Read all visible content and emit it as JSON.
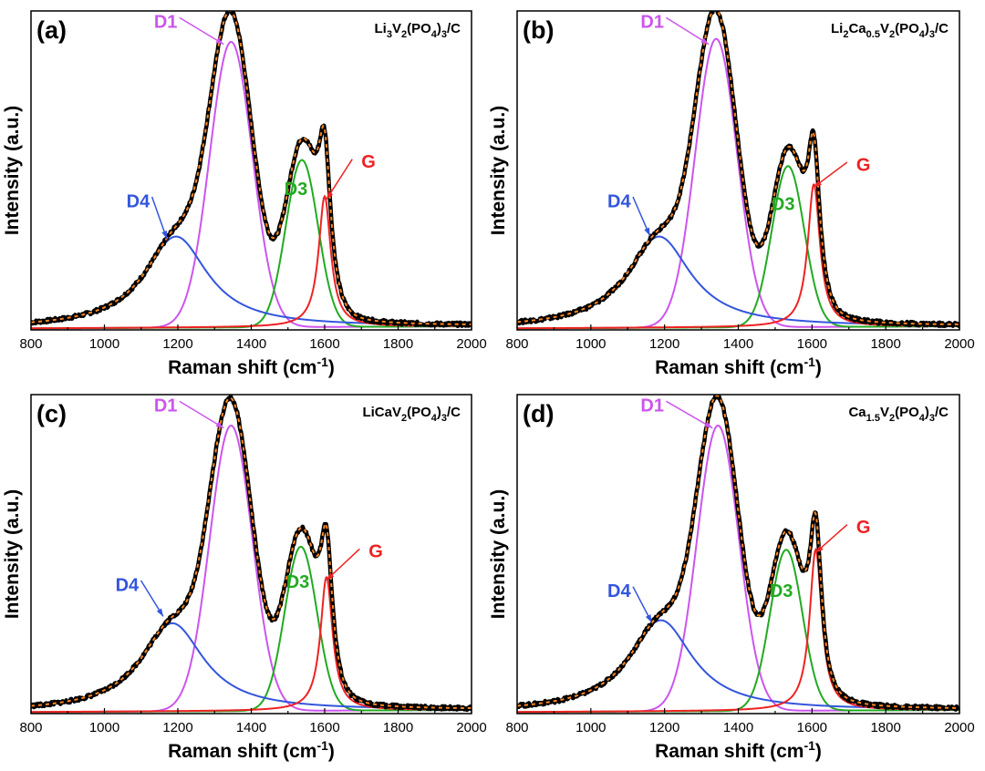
{
  "figure_name": "Raman spectra of four samples",
  "colors": {
    "D1": "#cc55ee",
    "D3": "#22aa22",
    "D4": "#3355dd",
    "G": "#ee2222",
    "experimental": "#000000",
    "fit": "#ff8822",
    "frame": "#000000"
  },
  "chart_data": [
    {
      "type": "line",
      "panel_label": "(a)",
      "sample": "Li3V2(PO4)3/C",
      "sample_parts": [
        {
          "t": "Li",
          "sub": false
        },
        {
          "t": "3",
          "sub": true
        },
        {
          "t": "V",
          "sub": false
        },
        {
          "t": "2",
          "sub": true
        },
        {
          "t": "(PO",
          "sub": false
        },
        {
          "t": "4",
          "sub": true
        },
        {
          "t": ")",
          "sub": false
        },
        {
          "t": "3",
          "sub": true
        },
        {
          "t": "/C",
          "sub": false
        }
      ],
      "xlabel": "Raman shift (cm",
      "xlabel_sup": "-1",
      "xlabel_end": ")",
      "ylabel": "Intensity (a.u.)",
      "xlim": [
        800,
        2000
      ],
      "ylim": [
        0,
        1.05
      ],
      "xticks": [
        800,
        1000,
        1200,
        1400,
        1600,
        1800,
        2000
      ],
      "background": {
        "x0": 800,
        "x1": 2000,
        "y0": 0.005,
        "y1": 0.012
      },
      "series": [
        {
          "name": "D1",
          "center": 1345,
          "amplitude": 0.94,
          "width": 82,
          "shape": "gaussian"
        },
        {
          "name": "D3",
          "center": 1538,
          "amplitude": 0.55,
          "width": 62,
          "shape": "gaussian"
        },
        {
          "name": "D4",
          "center": 1195,
          "amplitude": 0.3,
          "width": 105,
          "shape": "lorentzian"
        },
        {
          "name": "G",
          "center": 1600,
          "amplitude": 0.43,
          "width": 20,
          "shape": "lorentzian"
        }
      ],
      "annotations": [
        {
          "label": "D1",
          "text_x": 1135,
          "text_y": 1.01,
          "arrow_x": 1325,
          "arrow_y": 0.94
        },
        {
          "label": "D4",
          "text_x": 1060,
          "text_y": 0.42,
          "arrow_x": 1170,
          "arrow_y": 0.3
        },
        {
          "label": "D3",
          "text_x": 1490,
          "text_y": 0.46,
          "arrow_x": 1510,
          "arrow_y": 0.46
        },
        {
          "label": "G",
          "text_x": 1700,
          "text_y": 0.55,
          "arrow_x": 1605,
          "arrow_y": 0.43
        }
      ]
    },
    {
      "type": "line",
      "panel_label": "(b)",
      "sample": "Li2Ca0.5V2(PO4)3/C",
      "sample_parts": [
        {
          "t": "Li",
          "sub": false
        },
        {
          "t": "2",
          "sub": true
        },
        {
          "t": "Ca",
          "sub": false
        },
        {
          "t": "0.5",
          "sub": true
        },
        {
          "t": "V",
          "sub": false
        },
        {
          "t": "2",
          "sub": true
        },
        {
          "t": "(PO",
          "sub": false
        },
        {
          "t": "4",
          "sub": true
        },
        {
          "t": ")",
          "sub": false
        },
        {
          "t": "3",
          "sub": true
        },
        {
          "t": "/C",
          "sub": false
        }
      ],
      "xlabel": "Raman shift (cm",
      "xlabel_sup": "-1",
      "xlabel_end": ")",
      "ylabel": "Intensity (a.u.)",
      "xlim": [
        800,
        2000
      ],
      "ylim": [
        0,
        1.05
      ],
      "xticks": [
        800,
        1000,
        1200,
        1400,
        1600,
        1800,
        2000
      ],
      "background": {
        "x0": 800,
        "x1": 2000,
        "y0": 0.005,
        "y1": 0.012
      },
      "series": [
        {
          "name": "D1",
          "center": 1340,
          "amplitude": 0.95,
          "width": 80,
          "shape": "gaussian"
        },
        {
          "name": "D3",
          "center": 1535,
          "amplitude": 0.53,
          "width": 62,
          "shape": "gaussian"
        },
        {
          "name": "D4",
          "center": 1185,
          "amplitude": 0.3,
          "width": 105,
          "shape": "lorentzian"
        },
        {
          "name": "G",
          "center": 1605,
          "amplitude": 0.47,
          "width": 20,
          "shape": "lorentzian"
        }
      ],
      "annotations": [
        {
          "label": "D1",
          "text_x": 1135,
          "text_y": 1.01,
          "arrow_x": 1320,
          "arrow_y": 0.94
        },
        {
          "label": "D4",
          "text_x": 1045,
          "text_y": 0.42,
          "arrow_x": 1160,
          "arrow_y": 0.31
        },
        {
          "label": "D3",
          "text_x": 1490,
          "text_y": 0.41,
          "arrow_x": 1510,
          "arrow_y": 0.41
        },
        {
          "label": "G",
          "text_x": 1720,
          "text_y": 0.54,
          "arrow_x": 1605,
          "arrow_y": 0.47
        }
      ]
    },
    {
      "type": "line",
      "panel_label": "(c)",
      "sample": "LiCaV2(PO4)3/C",
      "sample_parts": [
        {
          "t": "LiCaV",
          "sub": false
        },
        {
          "t": "2",
          "sub": true
        },
        {
          "t": "(PO",
          "sub": false
        },
        {
          "t": "4",
          "sub": true
        },
        {
          "t": ")",
          "sub": false
        },
        {
          "t": "3",
          "sub": true
        },
        {
          "t": "/C",
          "sub": false
        }
      ],
      "xlabel": "Raman shift (cm",
      "xlabel_sup": "-1",
      "xlabel_end": ")",
      "ylabel": "Intensity (a.u.)",
      "xlim": [
        800,
        2000
      ],
      "ylim": [
        0,
        1.05
      ],
      "xticks": [
        800,
        1000,
        1200,
        1400,
        1600,
        1800,
        2000
      ],
      "background": {
        "x0": 800,
        "x1": 2000,
        "y0": 0.005,
        "y1": 0.012
      },
      "series": [
        {
          "name": "D1",
          "center": 1345,
          "amplitude": 0.94,
          "width": 82,
          "shape": "gaussian"
        },
        {
          "name": "D3",
          "center": 1535,
          "amplitude": 0.54,
          "width": 62,
          "shape": "gaussian"
        },
        {
          "name": "D4",
          "center": 1185,
          "amplitude": 0.29,
          "width": 105,
          "shape": "lorentzian"
        },
        {
          "name": "G",
          "center": 1605,
          "amplitude": 0.44,
          "width": 20,
          "shape": "lorentzian"
        }
      ],
      "annotations": [
        {
          "label": "D1",
          "text_x": 1135,
          "text_y": 1.01,
          "arrow_x": 1325,
          "arrow_y": 0.94
        },
        {
          "label": "D4",
          "text_x": 1030,
          "text_y": 0.42,
          "arrow_x": 1160,
          "arrow_y": 0.32
        },
        {
          "label": "D3",
          "text_x": 1495,
          "text_y": 0.43,
          "arrow_x": 1515,
          "arrow_y": 0.43
        },
        {
          "label": "G",
          "text_x": 1720,
          "text_y": 0.53,
          "arrow_x": 1605,
          "arrow_y": 0.44
        }
      ]
    },
    {
      "type": "line",
      "panel_label": "(d)",
      "sample": "Ca1.5V2(PO4)3/C",
      "sample_parts": [
        {
          "t": "Ca",
          "sub": false
        },
        {
          "t": "1.5",
          "sub": true
        },
        {
          "t": "V",
          "sub": false
        },
        {
          "t": "2",
          "sub": true
        },
        {
          "t": "(PO",
          "sub": false
        },
        {
          "t": "4",
          "sub": true
        },
        {
          "t": ")",
          "sub": false
        },
        {
          "t": "3",
          "sub": true
        },
        {
          "t": "/C",
          "sub": false
        }
      ],
      "xlabel": "Raman shift (cm",
      "xlabel_sup": "-1",
      "xlabel_end": ")",
      "ylabel": "Intensity (a.u.)",
      "xlim": [
        800,
        2000
      ],
      "ylim": [
        0,
        1.05
      ],
      "xticks": [
        800,
        1000,
        1200,
        1400,
        1600,
        1800,
        2000
      ],
      "background": {
        "x0": 800,
        "x1": 2000,
        "y0": 0.005,
        "y1": 0.012
      },
      "series": [
        {
          "name": "D1",
          "center": 1345,
          "amplitude": 0.94,
          "width": 80,
          "shape": "gaussian"
        },
        {
          "name": "D3",
          "center": 1530,
          "amplitude": 0.53,
          "width": 62,
          "shape": "gaussian"
        },
        {
          "name": "D4",
          "center": 1190,
          "amplitude": 0.3,
          "width": 105,
          "shape": "lorentzian"
        },
        {
          "name": "G",
          "center": 1610,
          "amplitude": 0.53,
          "width": 20,
          "shape": "lorentzian"
        }
      ],
      "annotations": [
        {
          "label": "D1",
          "text_x": 1135,
          "text_y": 1.01,
          "arrow_x": 1330,
          "arrow_y": 0.94
        },
        {
          "label": "D4",
          "text_x": 1045,
          "text_y": 0.4,
          "arrow_x": 1165,
          "arrow_y": 0.3
        },
        {
          "label": "D3",
          "text_x": 1485,
          "text_y": 0.4,
          "arrow_x": 1505,
          "arrow_y": 0.4
        },
        {
          "label": "G",
          "text_x": 1720,
          "text_y": 0.61,
          "arrow_x": 1610,
          "arrow_y": 0.53
        }
      ]
    }
  ]
}
